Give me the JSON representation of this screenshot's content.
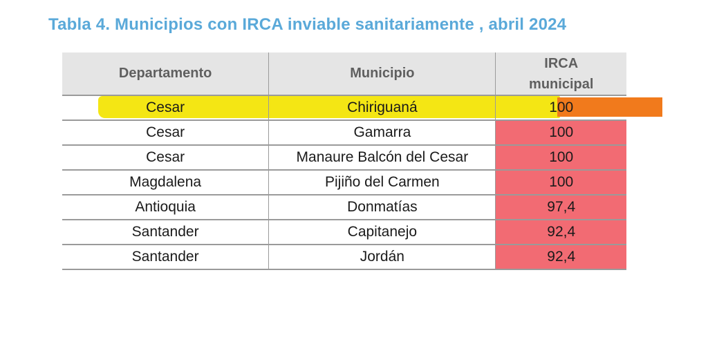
{
  "title": "Tabla 4. Municipios con IRCA inviable sanitariamente , abril 2024",
  "table": {
    "headers": {
      "departamento": "Departamento",
      "municipio": "Municipio",
      "irca_line1": "IRCA",
      "irca_line2": "municipal"
    },
    "rows": [
      {
        "departamento": "Cesar",
        "municipio": "Chiriguaná",
        "irca": "100"
      },
      {
        "departamento": "Cesar",
        "municipio": "Gamarra",
        "irca": "100"
      },
      {
        "departamento": "Cesar",
        "municipio": "Manaure Balcón del Cesar",
        "irca": "100"
      },
      {
        "departamento": "Magdalena",
        "municipio": "Pijiño del Carmen",
        "irca": "100"
      },
      {
        "departamento": "Antioquia",
        "municipio": "Donmatías",
        "irca": "97,4"
      },
      {
        "departamento": "Santander",
        "municipio": "Capitanejo",
        "irca": "92,4"
      },
      {
        "departamento": "Santander",
        "municipio": "Jordán",
        "irca": "92,4"
      }
    ]
  },
  "colors": {
    "title": "#5aa9d9",
    "header_bg": "#e5e5e5",
    "irca_cell": "#f26b73",
    "highlight_yellow": "#f3e400",
    "highlight_orange": "#f17a1c"
  }
}
